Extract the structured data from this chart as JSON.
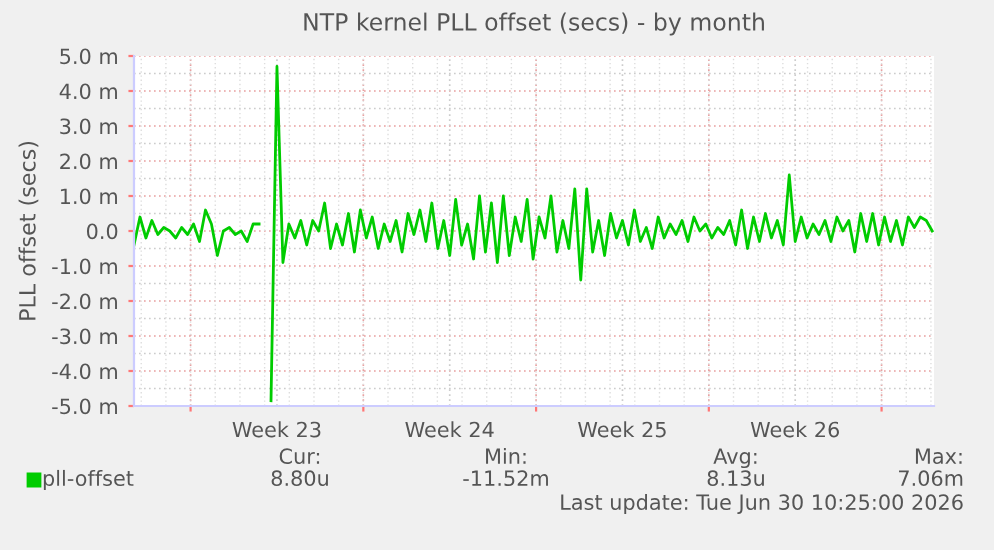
{
  "chart_data": {
    "type": "line",
    "title": "NTP kernel PLL offset (secs) - by month",
    "ylabel": "PLL offset (secs)",
    "categories": [
      null,
      null,
      null,
      null,
      null,
      null,
      null,
      null,
      null,
      null,
      null,
      null,
      null,
      null,
      null,
      null,
      null,
      null,
      null,
      null,
      null,
      null,
      null,
      null,
      "Week 23",
      null,
      null,
      null,
      null,
      null,
      null,
      null,
      null,
      null,
      null,
      null,
      null,
      null,
      null,
      null,
      null,
      null,
      null,
      null,
      null,
      null,
      null,
      null,
      null,
      null,
      null,
      null,
      null,
      "Week 24",
      null,
      null,
      null,
      null,
      null,
      null,
      null,
      null,
      null,
      null,
      null,
      null,
      null,
      null,
      null,
      null,
      null,
      null,
      null,
      null,
      null,
      null,
      null,
      null,
      null,
      null,
      null,
      null,
      "Week 25",
      null,
      null,
      null,
      null,
      null,
      null,
      null,
      null,
      null,
      null,
      null,
      null,
      null,
      null,
      null,
      null,
      null,
      null,
      null,
      null,
      null,
      null,
      null,
      null,
      null,
      null,
      null,
      null,
      "Week 26",
      null,
      null,
      null,
      null,
      null,
      null,
      null,
      null,
      null,
      null,
      null,
      null,
      null,
      null,
      null,
      null,
      null,
      null,
      null,
      null,
      null,
      null,
      null
    ],
    "series": [
      {
        "name": "pll-offset",
        "color": "#00cc00",
        "values": [
          -0.4,
          0.4,
          -0.2,
          0.3,
          -0.1,
          0.1,
          0.0,
          -0.2,
          0.1,
          -0.1,
          0.2,
          -0.3,
          0.6,
          0.2,
          -0.7,
          0.0,
          0.1,
          -0.1,
          0.0,
          -0.3,
          0.2,
          0.2,
          null,
          -4.85,
          4.7,
          -0.9,
          0.2,
          -0.2,
          0.3,
          -0.4,
          0.3,
          0.0,
          0.8,
          -0.5,
          0.2,
          -0.4,
          0.5,
          -0.6,
          0.6,
          -0.2,
          0.4,
          -0.5,
          0.2,
          -0.3,
          0.3,
          -0.6,
          0.5,
          -0.1,
          0.6,
          -0.3,
          0.8,
          -0.5,
          0.3,
          -0.7,
          0.9,
          -0.4,
          0.2,
          -0.8,
          1.0,
          -0.6,
          0.8,
          -0.9,
          1.0,
          -0.7,
          0.4,
          -0.3,
          0.9,
          -0.8,
          0.4,
          -0.2,
          1.0,
          -0.6,
          0.3,
          -0.5,
          1.2,
          -1.4,
          1.2,
          -0.6,
          0.3,
          -0.7,
          0.5,
          -0.2,
          0.3,
          -0.4,
          0.6,
          -0.3,
          0.1,
          -0.5,
          0.4,
          -0.2,
          0.2,
          -0.1,
          0.3,
          -0.3,
          0.4,
          0.0,
          0.2,
          -0.2,
          0.1,
          -0.1,
          0.3,
          -0.4,
          0.6,
          -0.5,
          0.4,
          -0.3,
          0.5,
          -0.2,
          0.3,
          -0.4,
          1.6,
          -0.3,
          0.4,
          -0.2,
          0.2,
          -0.1,
          0.3,
          -0.3,
          0.4,
          0.0,
          0.3,
          -0.6,
          0.5,
          -0.3,
          0.5,
          -0.4,
          0.4,
          -0.3,
          0.3,
          -0.4,
          0.4,
          0.1,
          0.4,
          0.3,
          0.0
        ]
      }
    ],
    "ylim": [
      -5.0,
      5.0
    ],
    "yticks": [
      {
        "value": -5.0,
        "label": "-5.0 m"
      },
      {
        "value": -4.0,
        "label": "-4.0 m"
      },
      {
        "value": -3.0,
        "label": "-3.0 m"
      },
      {
        "value": -2.0,
        "label": "-2.0 m"
      },
      {
        "value": -1.0,
        "label": "-1.0 m"
      },
      {
        "value": 0.0,
        "label": "0.0"
      },
      {
        "value": 1.0,
        "label": "1.0 m"
      },
      {
        "value": 2.0,
        "label": "2.0 m"
      },
      {
        "value": 3.0,
        "label": "3.0 m"
      },
      {
        "value": 4.0,
        "label": "4.0 m"
      },
      {
        "value": 5.0,
        "label": "5.0 m"
      }
    ],
    "grid": true,
    "legend": "bottom left",
    "annotations": [
      "Cur:",
      "Min:",
      "Avg:",
      "Max:",
      "8.80u",
      "-11.52m",
      "8.13u",
      "7.06m",
      "Last update: Tue Jun 30 10:25:00 2026"
    ]
  }
}
